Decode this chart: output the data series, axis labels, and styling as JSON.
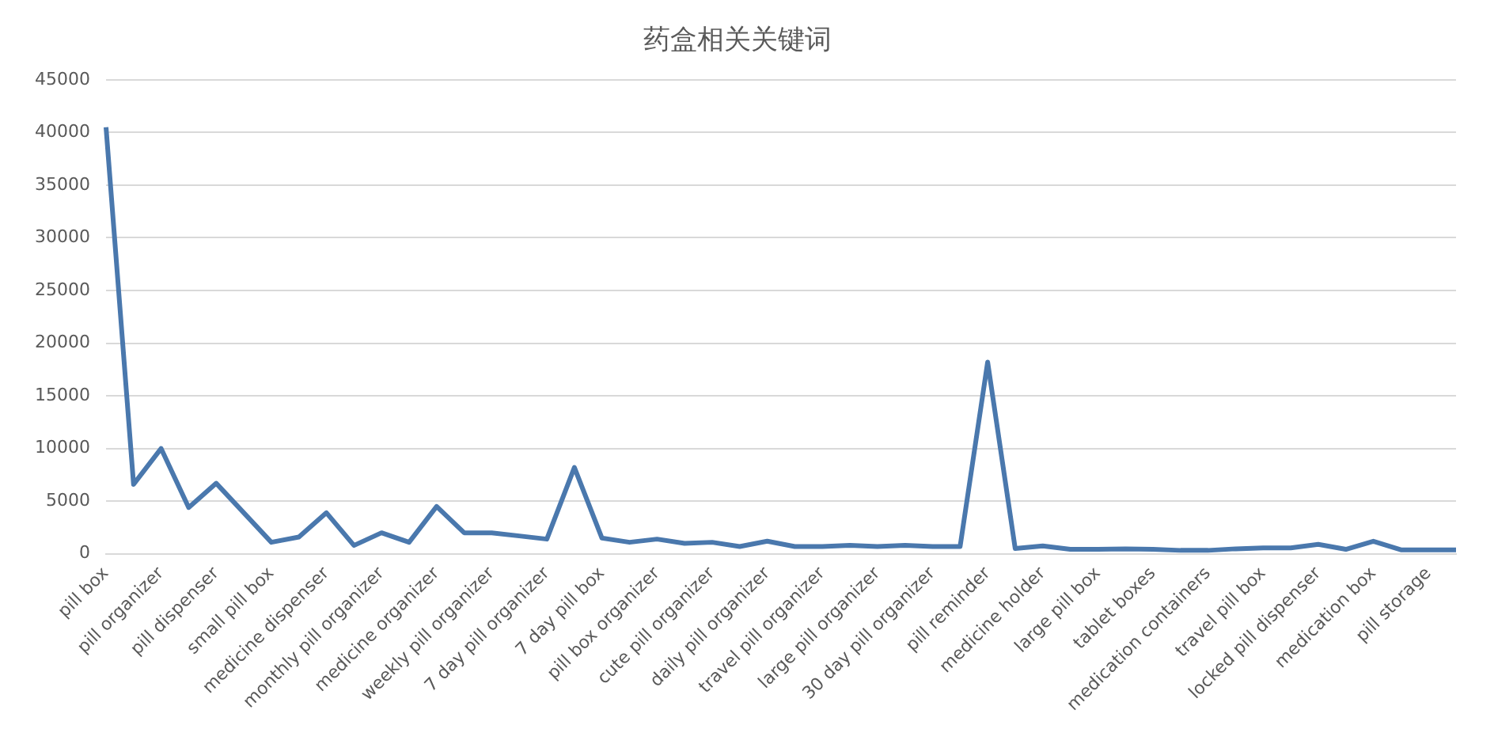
{
  "chart_data": {
    "type": "line",
    "title": "药盒相关关键词",
    "categories": [
      "pill box",
      null,
      "pill organizer",
      null,
      "pill dispenser",
      null,
      "small pill box",
      null,
      "medicine dispenser",
      null,
      "monthly pill organizer",
      null,
      "medicine organizer",
      null,
      "weekly pill organizer",
      null,
      "7 day pill organizer",
      null,
      "7 day pill box",
      null,
      "pill box organizer",
      null,
      "cute pill organizer",
      null,
      "daily pill organizer",
      null,
      "travel pill organizer",
      null,
      "large pill organizer",
      null,
      "30 day pill organizer",
      null,
      "pill reminder",
      null,
      "medicine holder",
      null,
      "large pill box",
      null,
      "tablet boxes",
      null,
      "medication containers",
      null,
      "travel pill box",
      null,
      "locked pill dispenser",
      null,
      "medication box",
      null,
      "pill storage",
      null
    ],
    "series": [
      {
        "color": "#4a78ad",
        "values": [
          40500,
          6600,
          10000,
          4400,
          6700,
          3900,
          1100,
          1600,
          3900,
          800,
          2000,
          1100,
          4500,
          2000,
          2000,
          1700,
          1400,
          8200,
          1500,
          1100,
          1400,
          1000,
          1100,
          700,
          1200,
          700,
          700,
          800,
          700,
          800,
          700,
          700,
          18200,
          500,
          750,
          430,
          430,
          480,
          430,
          330,
          330,
          480,
          570,
          570,
          900,
          430,
          1200,
          380,
          380,
          380
        ]
      }
    ],
    "ylim": [
      0,
      45000
    ],
    "yticks": [
      0,
      5000,
      10000,
      15000,
      20000,
      25000,
      30000,
      35000,
      40000,
      45000
    ],
    "grid": "y",
    "legend": false,
    "marker": "none",
    "line_style": "solid"
  }
}
